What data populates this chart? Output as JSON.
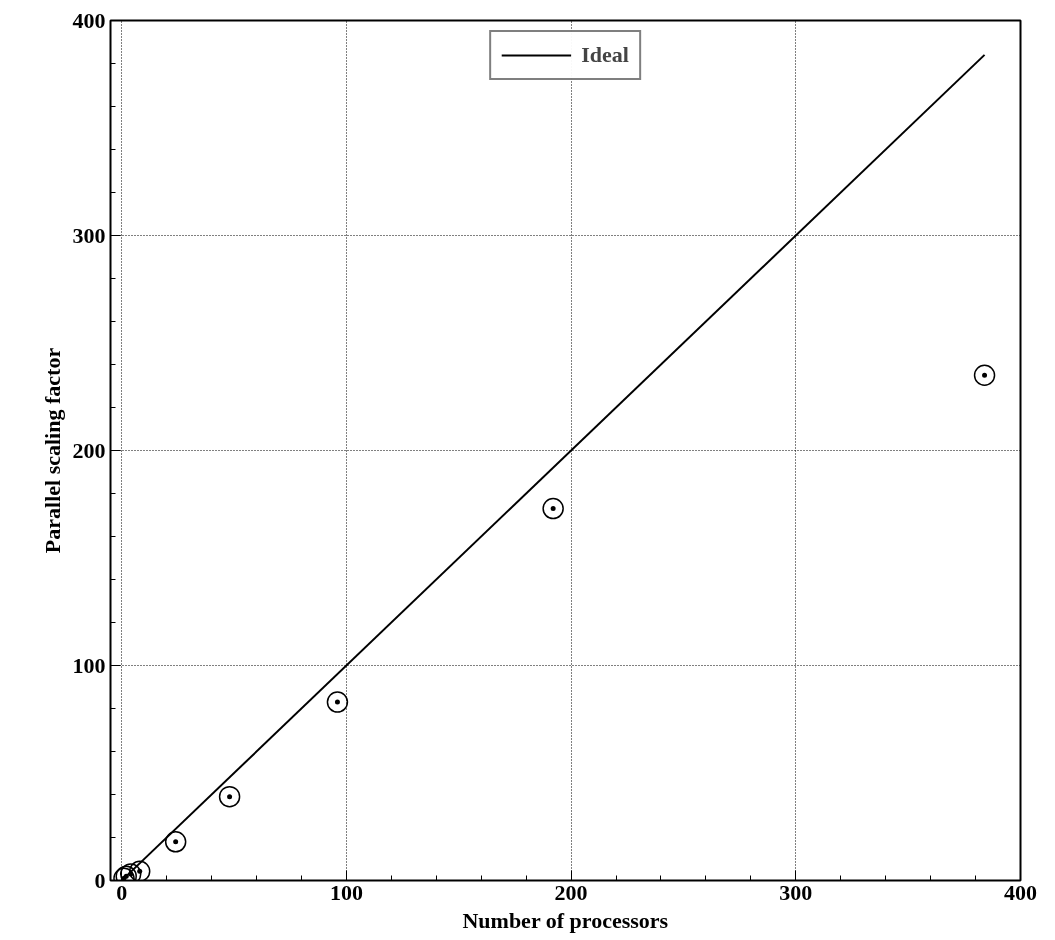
{
  "chart_data": {
    "type": "scatter",
    "xlabel": "Number of processors",
    "ylabel": "Parallel scaling factor",
    "xlim": [
      -5,
      400
    ],
    "ylim": [
      0,
      400
    ],
    "xticks": [
      0,
      100,
      200,
      300,
      400
    ],
    "yticks": [
      0,
      100,
      200,
      300,
      400
    ],
    "grid": true,
    "legend": "top",
    "series": [
      {
        "name": "Ideal",
        "type": "line",
        "color": "#000000",
        "line_style": "solid",
        "marker": "none",
        "x": [
          1,
          384
        ],
        "values": [
          1,
          384
        ]
      },
      {
        "color": "#000000",
        "marker": "circle",
        "x": [
          1,
          2,
          4,
          8,
          24,
          48,
          96,
          192,
          384
        ],
        "values": [
          1,
          2,
          3,
          4.3,
          18,
          39,
          83,
          173,
          235
        ]
      }
    ]
  }
}
